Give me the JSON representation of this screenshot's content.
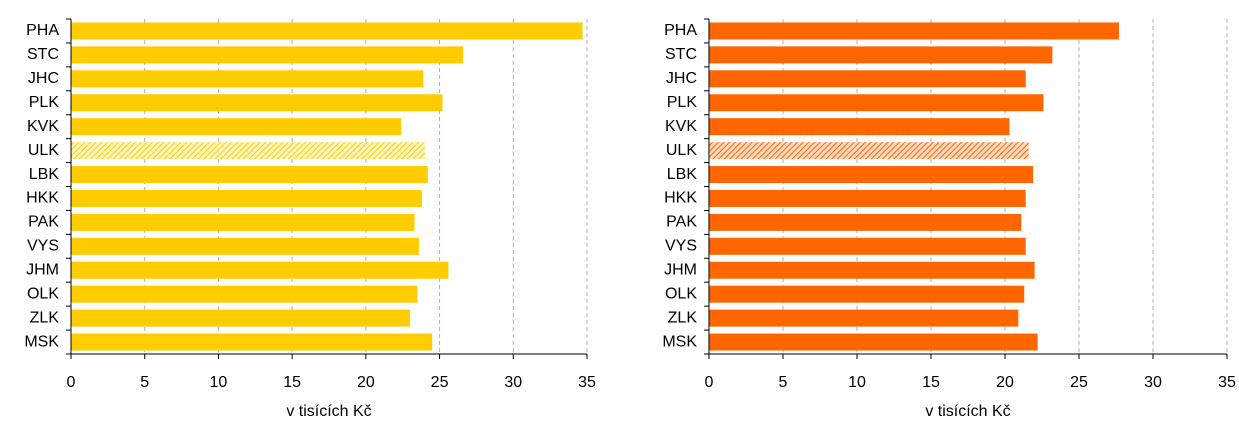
{
  "chart_data": [
    {
      "type": "bar",
      "orientation": "horizontal",
      "color": "#ffcc00",
      "patterned_category": "ULK",
      "grid": true,
      "categories": [
        "PHA",
        "STC",
        "JHC",
        "PLK",
        "KVK",
        "ULK",
        "LBK",
        "HKK",
        "PAK",
        "VYS",
        "JHM",
        "OLK",
        "ZLK",
        "MSK"
      ],
      "values": [
        34.7,
        26.6,
        23.9,
        25.2,
        22.4,
        24.0,
        24.2,
        23.8,
        23.3,
        23.6,
        25.6,
        23.5,
        23.0,
        24.5
      ],
      "xlim": [
        0,
        35
      ],
      "xticks": [
        0,
        5,
        10,
        15,
        20,
        25,
        30,
        35
      ],
      "xlabel": "v tisících Kč"
    },
    {
      "type": "bar",
      "orientation": "horizontal",
      "color": "#ff6600",
      "patterned_category": "ULK",
      "grid": true,
      "categories": [
        "PHA",
        "STC",
        "JHC",
        "PLK",
        "KVK",
        "ULK",
        "LBK",
        "HKK",
        "PAK",
        "VYS",
        "JHM",
        "OLK",
        "ZLK",
        "MSK"
      ],
      "values": [
        27.7,
        23.2,
        21.4,
        22.6,
        20.3,
        21.6,
        21.9,
        21.4,
        21.1,
        21.4,
        22.0,
        21.3,
        20.9,
        22.2
      ],
      "xlim": [
        0,
        35
      ],
      "xticks": [
        0,
        5,
        10,
        15,
        20,
        25,
        30,
        35
      ],
      "xlabel": "v tisících Kč"
    }
  ]
}
